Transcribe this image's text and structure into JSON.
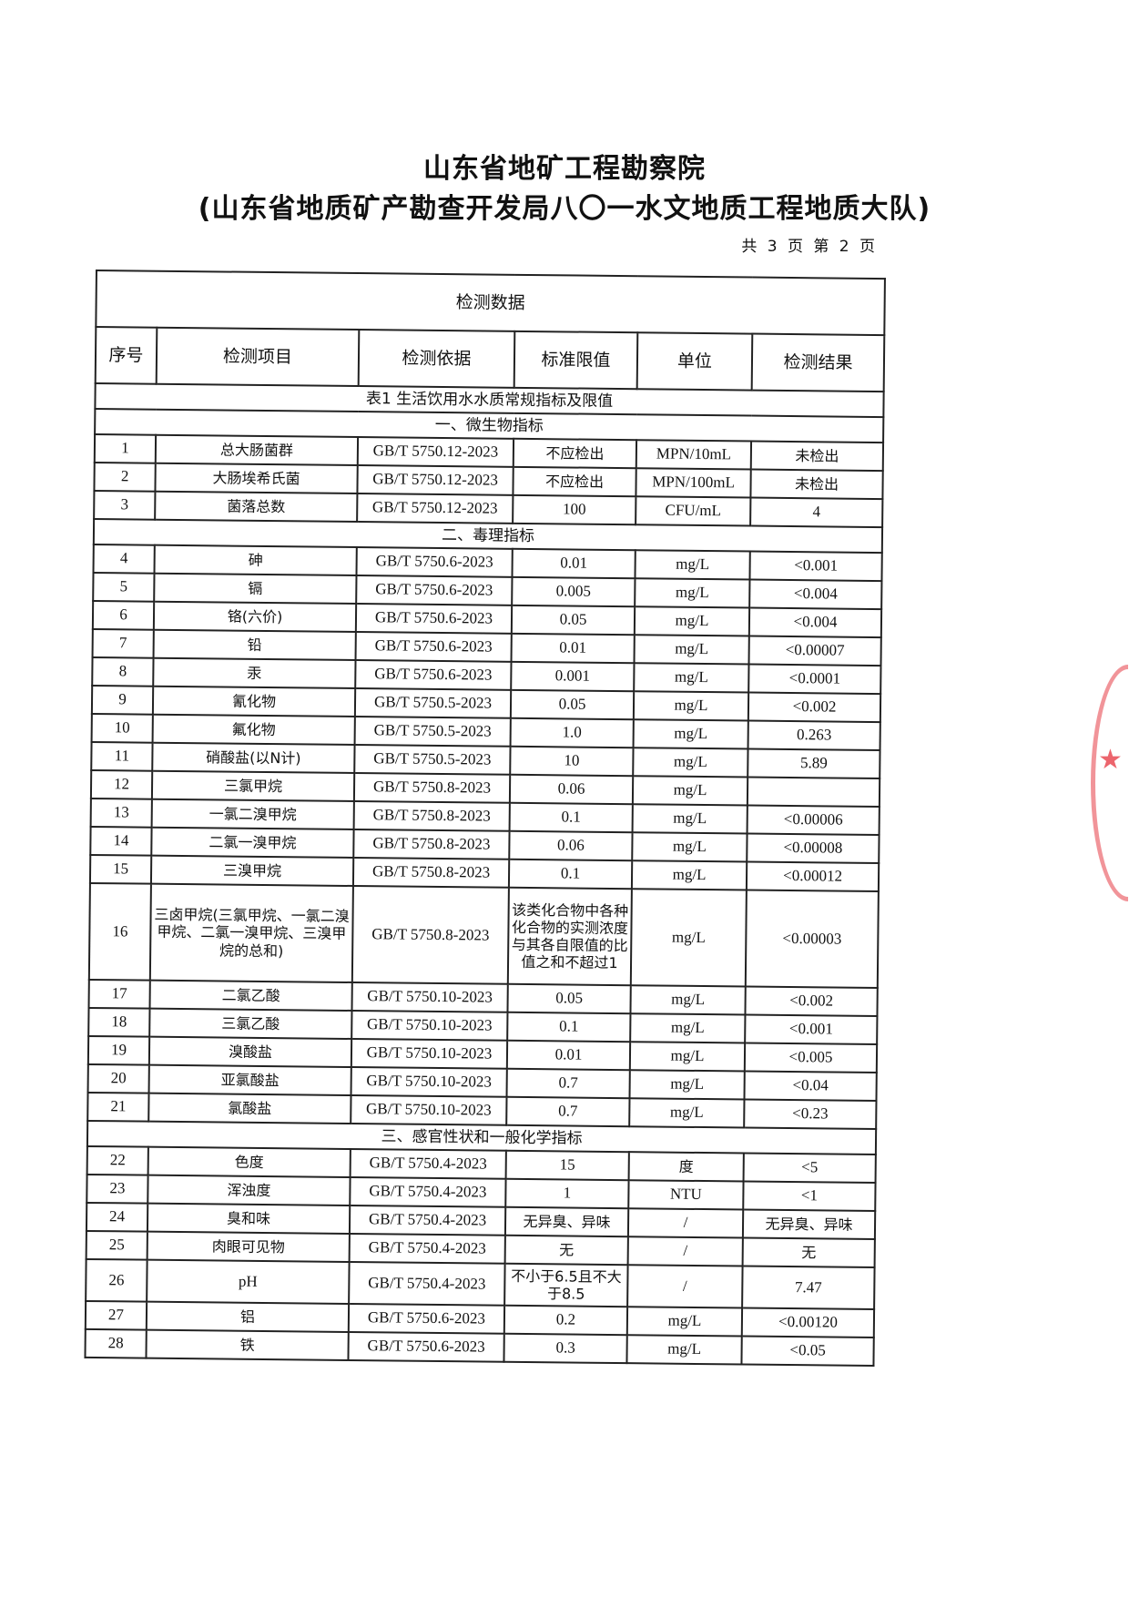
{
  "header": {
    "org_title": "山东省地矿工程勘察院",
    "org_subtitle": "(山东省地质矿产勘查开发局八〇一水文地质工程地质大队)",
    "page_info": "共 3 页 第 2 页"
  },
  "table": {
    "caption": "检测数据",
    "columns": [
      "序号",
      "检测项目",
      "检测依据",
      "标准限值",
      "单位",
      "检测结果"
    ],
    "table_title": "表1 生活饮用水水质常规指标及限值",
    "sections": [
      {
        "title": "一、微生物指标",
        "rows": [
          [
            "1",
            "总大肠菌群",
            "GB/T 5750.12-2023",
            "不应检出",
            "MPN/10mL",
            "未检出"
          ],
          [
            "2",
            "大肠埃希氏菌",
            "GB/T 5750.12-2023",
            "不应检出",
            "MPN/100mL",
            "未检出"
          ],
          [
            "3",
            "菌落总数",
            "GB/T 5750.12-2023",
            "100",
            "CFU/mL",
            "4"
          ]
        ]
      },
      {
        "title": "二、毒理指标",
        "rows": [
          [
            "4",
            "砷",
            "GB/T 5750.6-2023",
            "0.01",
            "mg/L",
            "<0.001"
          ],
          [
            "5",
            "镉",
            "GB/T 5750.6-2023",
            "0.005",
            "mg/L",
            "<0.004"
          ],
          [
            "6",
            "铬(六价)",
            "GB/T 5750.6-2023",
            "0.05",
            "mg/L",
            "<0.004"
          ],
          [
            "7",
            "铅",
            "GB/T 5750.6-2023",
            "0.01",
            "mg/L",
            "<0.00007"
          ],
          [
            "8",
            "汞",
            "GB/T 5750.6-2023",
            "0.001",
            "mg/L",
            "<0.0001"
          ],
          [
            "9",
            "氰化物",
            "GB/T 5750.5-2023",
            "0.05",
            "mg/L",
            "<0.002"
          ],
          [
            "10",
            "氟化物",
            "GB/T 5750.5-2023",
            "1.0",
            "mg/L",
            "0.263"
          ],
          [
            "11",
            "硝酸盐(以N计)",
            "GB/T 5750.5-2023",
            "10",
            "mg/L",
            "5.89"
          ],
          [
            "12",
            "三氯甲烷",
            "GB/T 5750.8-2023",
            "0.06",
            "mg/L",
            ""
          ],
          [
            "13",
            "一氯二溴甲烷",
            "GB/T 5750.8-2023",
            "0.1",
            "mg/L",
            "<0.00006"
          ],
          [
            "14",
            "二氯一溴甲烷",
            "GB/T 5750.8-2023",
            "0.06",
            "mg/L",
            "<0.00008"
          ],
          [
            "15",
            "三溴甲烷",
            "GB/T 5750.8-2023",
            "0.1",
            "mg/L",
            "<0.00012"
          ],
          [
            "16",
            "三卤甲烷(三氯甲烷、一氯二溴甲烷、二氯一溴甲烷、三溴甲烷的总和)",
            "GB/T 5750.8-2023",
            "该类化合物中各种化合物的实测浓度与其各自限值的比值之和不超过1",
            "mg/L",
            "<0.00003"
          ],
          [
            "17",
            "二氯乙酸",
            "GB/T 5750.10-2023",
            "0.05",
            "mg/L",
            "<0.002"
          ],
          [
            "18",
            "三氯乙酸",
            "GB/T 5750.10-2023",
            "0.1",
            "mg/L",
            "<0.001"
          ],
          [
            "19",
            "溴酸盐",
            "GB/T 5750.10-2023",
            "0.01",
            "mg/L",
            "<0.005"
          ],
          [
            "20",
            "亚氯酸盐",
            "GB/T 5750.10-2023",
            "0.7",
            "mg/L",
            "<0.04"
          ],
          [
            "21",
            "氯酸盐",
            "GB/T 5750.10-2023",
            "0.7",
            "mg/L",
            "<0.23"
          ]
        ]
      },
      {
        "title": "三、感官性状和一般化学指标",
        "rows": [
          [
            "22",
            "色度",
            "GB/T 5750.4-2023",
            "15",
            "度",
            "<5"
          ],
          [
            "23",
            "浑浊度",
            "GB/T 5750.4-2023",
            "1",
            "NTU",
            "<1"
          ],
          [
            "24",
            "臭和味",
            "GB/T 5750.4-2023",
            "无异臭、异味",
            "/",
            "无异臭、异味"
          ],
          [
            "25",
            "肉眼可见物",
            "GB/T 5750.4-2023",
            "无",
            "/",
            "无"
          ],
          [
            "26",
            "pH",
            "GB/T 5750.4-2023",
            "不小于6.5且不大于8.5",
            "/",
            "7.47"
          ],
          [
            "27",
            "铝",
            "GB/T 5750.6-2023",
            "0.2",
            "mg/L",
            "<0.00120"
          ],
          [
            "28",
            "铁",
            "GB/T 5750.6-2023",
            "0.3",
            "mg/L",
            "<0.05"
          ]
        ]
      }
    ]
  },
  "stamp": {
    "color": "#e63c46"
  }
}
